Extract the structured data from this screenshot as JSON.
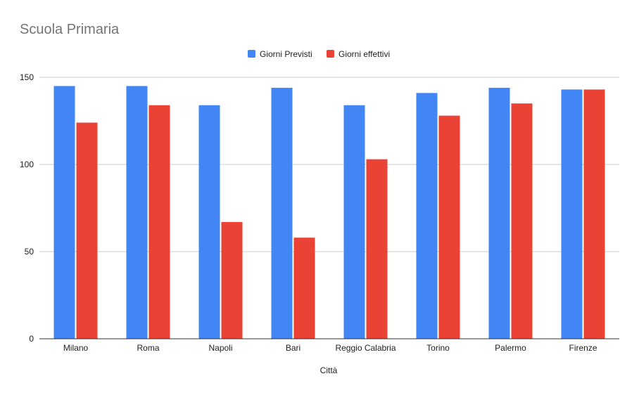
{
  "chart_data": {
    "type": "bar",
    "title": "Scuola Primaria",
    "xlabel": "Città",
    "ylabel": "",
    "ylim": [
      0,
      150
    ],
    "yticks": [
      0,
      50,
      100,
      150
    ],
    "categories": [
      "Milano",
      "Roma",
      "Napoli",
      "Bari",
      "Reggio Calabria",
      "Torino",
      "Palermo",
      "Firenze"
    ],
    "series": [
      {
        "name": "Giorni Previsti",
        "color": "#4285f4",
        "values": [
          145,
          145,
          134,
          144,
          134,
          141,
          144,
          143
        ]
      },
      {
        "name": "Giorni effettivi",
        "color": "#ea4335",
        "values": [
          124,
          134,
          67,
          58,
          103,
          128,
          135,
          143
        ]
      }
    ],
    "grid": true,
    "legend_position": "top"
  }
}
